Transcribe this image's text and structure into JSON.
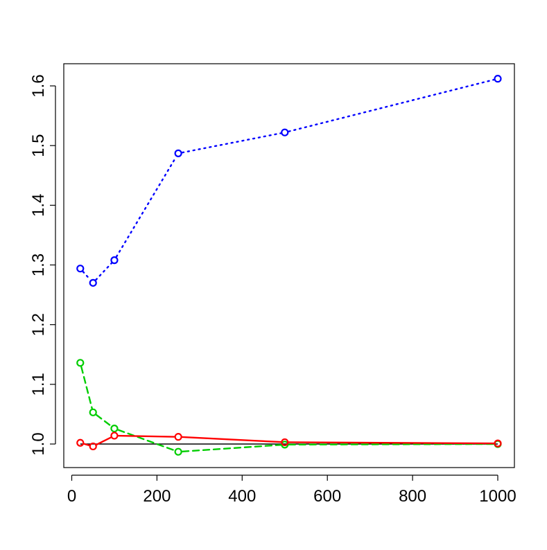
{
  "chart_data": {
    "type": "line",
    "title": "",
    "xlabel": "",
    "ylabel": "",
    "xlim": [
      0,
      1000
    ],
    "ylim": [
      0.9,
      1.65
    ],
    "x_ticks": [
      {
        "value": 0,
        "label": "0"
      },
      {
        "value": 200,
        "label": "200"
      },
      {
        "value": 400,
        "label": "400"
      },
      {
        "value": 600,
        "label": "600"
      },
      {
        "value": 800,
        "label": "800"
      },
      {
        "value": 1000,
        "label": "1000"
      }
    ],
    "y_ticks": [
      {
        "value": 1.0,
        "label": "1.0"
      },
      {
        "value": 1.1,
        "label": "1.1"
      },
      {
        "value": 1.2,
        "label": "1.2"
      },
      {
        "value": 1.3,
        "label": "1.3"
      },
      {
        "value": 1.4,
        "label": "1.4"
      },
      {
        "value": 1.5,
        "label": "1.5"
      },
      {
        "value": 1.6,
        "label": "1.6"
      }
    ],
    "grid": false,
    "legend": "none",
    "reference_line": {
      "y": 1.0,
      "color": "#000000"
    },
    "x": [
      20,
      50,
      100,
      250,
      500,
      1000
    ],
    "series": [
      {
        "color": "#0000ff",
        "line_style": "dotted",
        "marker": "open-circle",
        "values": [
          1.294,
          1.27,
          1.308,
          1.487,
          1.522,
          1.612
        ]
      },
      {
        "color": "#00cd00",
        "line_style": "dashed",
        "marker": "open-circle",
        "values": [
          1.136,
          1.053,
          1.026,
          0.987,
          0.999,
          1.0
        ]
      },
      {
        "color": "#ff0000",
        "line_style": "solid",
        "marker": "open-circle",
        "values": [
          1.002,
          0.996,
          1.014,
          1.012,
          1.003,
          1.001
        ]
      }
    ]
  }
}
